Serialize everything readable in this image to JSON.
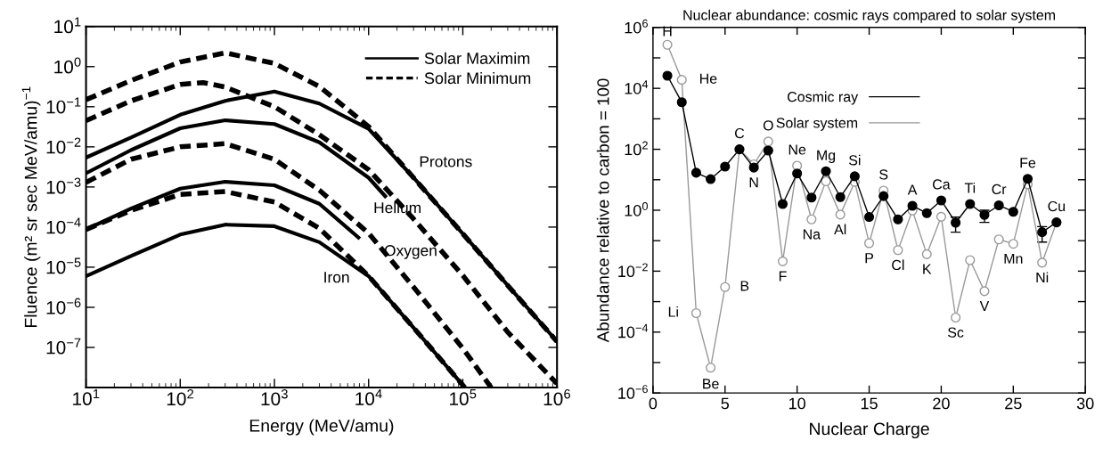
{
  "chart_data": [
    {
      "type": "line",
      "xlabel": "Energy (MeV/amu)",
      "ylabel": "Fluence (m² sr sec MeV/amu)$^{−1}$",
      "log": "xy",
      "grid": false,
      "legend": "top right",
      "marker": "none",
      "xlim": [
        10,
        1000000
      ],
      "ylim": [
        1e-08,
        10
      ],
      "xticks": [
        {
          "value": 10,
          "label": "10$^{1}$"
        },
        {
          "value": 100,
          "label": "10$^{2}$"
        },
        {
          "value": 1000,
          "label": "10$^{3}$"
        },
        {
          "value": 10000,
          "label": "10$^{4}$"
        },
        {
          "value": 100000,
          "label": "10$^{5}$"
        },
        {
          "value": 1000000,
          "label": "10$^{6}$"
        }
      ],
      "yticks": [
        {
          "value": 1e-08,
          "label": null
        },
        {
          "value": 1e-07,
          "label": "10$^{−7}$"
        },
        {
          "value": 1e-06,
          "label": "10$^{−6}$"
        },
        {
          "value": 1e-05,
          "label": "10$^{−5}$"
        },
        {
          "value": 0.0001,
          "label": "10$^{−4}$"
        },
        {
          "value": 0.001,
          "label": "10$^{−3}$"
        },
        {
          "value": 0.01,
          "label": "10$^{−2}$"
        },
        {
          "value": 0.1,
          "label": "10$^{−1}$"
        },
        {
          "value": 1,
          "label": "10$^{0}$"
        },
        {
          "value": 10,
          "label": "10$^{1}$"
        }
      ],
      "series": [
        {
          "name": "Solar Maximim",
          "color": "#000000",
          "line_style": "solid",
          "x": [
            10,
            30,
            100,
            300,
            1000,
            3000,
            10000,
            30000,
            100000,
            300000,
            1000000
          ],
          "values": [
            0.0054,
            0.017,
            0.063,
            0.14,
            0.24,
            0.12,
            0.028,
            0.0017,
            6.8e-05,
            3.5e-06,
            1.4e-07
          ]
        },
        {
          "name": "Solar Minimum",
          "color": "#000000",
          "line_style": "dashed",
          "x": [
            10,
            30,
            100,
            300,
            1000,
            3000,
            10000,
            30000,
            100000,
            300000,
            1000000
          ],
          "values": [
            0.15,
            0.45,
            1.3,
            2.2,
            1.2,
            0.32,
            0.032,
            0.0017,
            6.8e-05,
            3.5e-06,
            1.4e-07
          ]
        },
        {
          "color": "#000000",
          "line_style": "solid",
          "x": [
            10,
            30,
            100,
            300,
            1000,
            3000,
            10000,
            15000
          ],
          "values": [
            0.0022,
            0.0083,
            0.029,
            0.046,
            0.037,
            0.013,
            0.0017,
            0.00059
          ]
        },
        {
          "color": "#000000",
          "line_style": "dashed",
          "x": [
            10,
            30,
            100,
            175,
            300,
            1000,
            3000,
            10000,
            30000,
            100000,
            300000,
            1000000
          ],
          "values": [
            0.045,
            0.14,
            0.36,
            0.4,
            0.31,
            0.1,
            0.02,
            0.0027,
            0.00016,
            6.2e-06,
            2.4e-07,
            1.25e-08
          ]
        },
        {
          "color": "#000000",
          "line_style": "solid",
          "x": [
            10,
            30,
            100,
            300,
            1000,
            3000,
            7800
          ],
          "values": [
            8.7e-05,
            0.00029,
            0.00091,
            0.00135,
            0.0011,
            0.00038,
            5.5e-05
          ]
        },
        {
          "color": "#000000",
          "line_style": "dashed",
          "x": [
            10,
            30,
            100,
            300,
            1000,
            3000,
            10000,
            30000,
            100000,
            200000
          ],
          "values": [
            0.0013,
            0.0049,
            0.01,
            0.012,
            0.0049,
            0.00083,
            7e-05,
            3.2e-06,
            9.5e-08,
            1e-08
          ]
        },
        {
          "color": "#000000",
          "line_style": "solid",
          "x": [
            10,
            30,
            100,
            300,
            1000,
            3000,
            10000,
            30000,
            105000
          ],
          "values": [
            6e-06,
            1.9e-05,
            6.5e-05,
            0.000115,
            0.000105,
            4.2e-05,
            6e-06,
            3.1e-07,
            1e-08
          ]
        },
        {
          "color": "#000000",
          "line_style": "dashed",
          "x": [
            10,
            30,
            100,
            300,
            1000,
            3000,
            10000,
            30000,
            105000
          ],
          "values": [
            8.7e-05,
            0.00026,
            0.00065,
            0.00077,
            0.00042,
            9.3e-05,
            6e-06,
            3.1e-07,
            1e-08
          ]
        }
      ],
      "annotations": [
        {
          "text": "Protons",
          "x": 30000,
          "y": 0.0017
        },
        {
          "text": "Helium",
          "x": 30000,
          "y": 0.00016
        },
        {
          "text": "Oxygen",
          "x": 10000,
          "y": 7e-05
        },
        {
          "text": "Iron",
          "x": 10000,
          "y": 6e-06
        }
      ]
    },
    {
      "type": "line",
      "title": "Nuclear abundance: cosmic rays compared to solar system",
      "xlabel": "Nuclear Charge",
      "ylabel": "Abundance relative to carbon = 100",
      "log": "y",
      "grid": false,
      "legend": "top",
      "xlim": [
        0,
        30
      ],
      "ylim": [
        1e-06,
        1000000
      ],
      "xticks": [
        0,
        5,
        10,
        15,
        20,
        25,
        30
      ],
      "yticks": [
        {
          "value": 1e-06,
          "label": "10$^{−6}$"
        },
        {
          "value": 1e-05,
          "label": null
        },
        {
          "value": 0.0001,
          "label": "10$^{−4}$"
        },
        {
          "value": 0.001,
          "label": null
        },
        {
          "value": 0.01,
          "label": "10$^{−2}$"
        },
        {
          "value": 0.1,
          "label": null
        },
        {
          "value": 1,
          "label": "10$^{0}$"
        },
        {
          "value": 10,
          "label": null
        },
        {
          "value": 100,
          "label": "10$^{2}$"
        },
        {
          "value": 1000,
          "label": null
        },
        {
          "value": 10000,
          "label": "10$^{4}$"
        },
        {
          "value": 100000,
          "label": null
        },
        {
          "value": 1000000,
          "label": "10$^{6}$"
        }
      ],
      "x": [
        1,
        2,
        3,
        4,
        5,
        6,
        7,
        8,
        9,
        10,
        11,
        12,
        13,
        14,
        15,
        16,
        17,
        18,
        19,
        20,
        21,
        22,
        23,
        24,
        25,
        26,
        27,
        28
      ],
      "series": [
        {
          "name": "Cosmic ray",
          "color": "#000000",
          "marker": "circle",
          "values": [
            26000,
            3500,
            17,
            10.5,
            27,
            100,
            25,
            91,
            1.6,
            16,
            2.6,
            19,
            2.7,
            13,
            0.6,
            2.9,
            0.5,
            1.4,
            0.8,
            2.1,
            0.39,
            1.6,
            0.7,
            1.45,
            0.89,
            10.7,
            0.19,
            0.4
          ],
          "errors": [
            null,
            null,
            null,
            null,
            null,
            null,
            null,
            null,
            null,
            null,
            null,
            null,
            null,
            null,
            null,
            null,
            null,
            null,
            null,
            null,
            0.2,
            null,
            0.3,
            null,
            null,
            null,
            0.1,
            null
          ]
        },
        {
          "name": "Solar system",
          "color": "#999999",
          "marker": "circle",
          "values": [
            270000,
            19000,
            0.00042,
            6.8e-06,
            0.003,
            100,
            32,
            180,
            0.021,
            29,
            0.5,
            8.9,
            0.72,
            8.5,
            0.083,
            4.4,
            0.049,
            0.98,
            0.036,
            0.61,
            0.0003,
            0.023,
            0.0022,
            0.11,
            0.079,
            7.1,
            0.019,
            0.4
          ]
        }
      ],
      "annotations": [
        {
          "text": "H",
          "x": 1,
          "y": 270000
        },
        {
          "text": "He",
          "x": 2,
          "y": 19000
        },
        {
          "text": "Li",
          "x": 3,
          "y": 0.00042
        },
        {
          "text": "Be",
          "x": 4,
          "y": 6.8e-06
        },
        {
          "text": "B",
          "x": 5,
          "y": 0.003
        },
        {
          "text": "C",
          "x": 6,
          "y": 100
        },
        {
          "text": "N",
          "x": 7,
          "y": 25
        },
        {
          "text": "O",
          "x": 8,
          "y": 180
        },
        {
          "text": "F",
          "x": 9,
          "y": 0.021
        },
        {
          "text": "Ne",
          "x": 10,
          "y": 29
        },
        {
          "text": "Na",
          "x": 11,
          "y": 0.5
        },
        {
          "text": "Mg",
          "x": 12,
          "y": 19
        },
        {
          "text": "Al",
          "x": 13,
          "y": 0.72
        },
        {
          "text": "Si",
          "x": 14,
          "y": 13
        },
        {
          "text": "P",
          "x": 15,
          "y": 0.083
        },
        {
          "text": "S",
          "x": 16,
          "y": 4.4
        },
        {
          "text": "Cl",
          "x": 17,
          "y": 0.049
        },
        {
          "text": "A",
          "x": 18,
          "y": 1.4
        },
        {
          "text": "K",
          "x": 19,
          "y": 0.036
        },
        {
          "text": "Ca",
          "x": 20,
          "y": 2.1
        },
        {
          "text": "Sc",
          "x": 21,
          "y": 0.0003
        },
        {
          "text": "Ti",
          "x": 22,
          "y": 1.6
        },
        {
          "text": "V",
          "x": 23,
          "y": 0.0022
        },
        {
          "text": "Cr",
          "x": 24,
          "y": 1.45
        },
        {
          "text": "Mn",
          "x": 25,
          "y": 0.079
        },
        {
          "text": "Fe",
          "x": 26,
          "y": 10.7
        },
        {
          "text": "Ni",
          "x": 27,
          "y": 0.019
        },
        {
          "text": "Cu",
          "x": 28,
          "y": 0.4
        }
      ]
    }
  ]
}
